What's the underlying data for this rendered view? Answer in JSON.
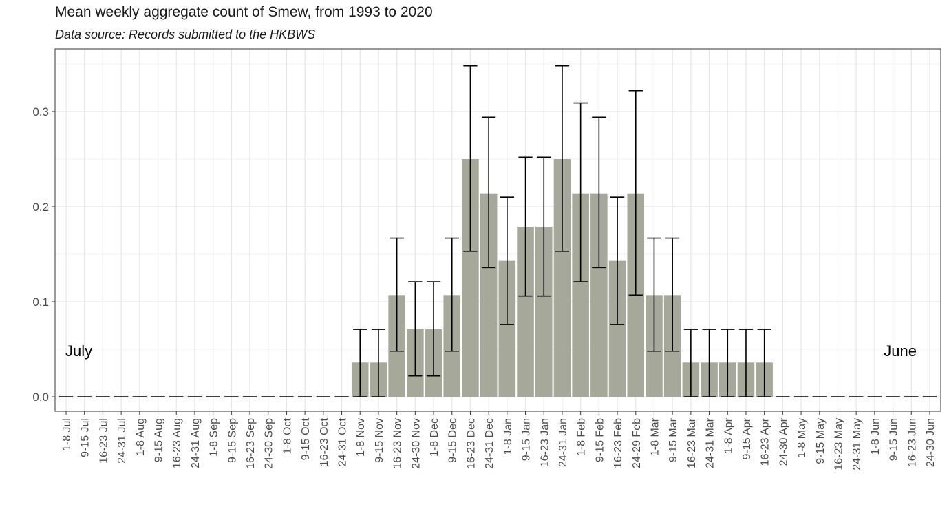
{
  "chart_data": {
    "type": "bar",
    "title": "Mean weekly aggregate count of Smew, from 1993 to 2020",
    "subtitle": "Data source: Records submitted to the HKBWS",
    "xlabel": "",
    "ylabel": "",
    "ylim": [
      0,
      0.36
    ],
    "yticks": [
      "0.0",
      "0.1",
      "0.2",
      "0.3"
    ],
    "grid": true,
    "bar_color": "#a6a89a",
    "annotations": [
      "July",
      "June"
    ],
    "categories": [
      "1-8 Jul",
      "9-15 Jul",
      "16-23 Jul",
      "24-31 Jul",
      "1-8 Aug",
      "9-15 Aug",
      "16-23 Aug",
      "24-31 Aug",
      "1-8 Sep",
      "9-15 Sep",
      "16-23 Sep",
      "24-30 Sep",
      "1-8 Oct",
      "9-15 Oct",
      "16-23 Oct",
      "24-31 Oct",
      "1-8 Nov",
      "9-15 Nov",
      "16-23 Nov",
      "24-30 Nov",
      "1-8 Dec",
      "9-15 Dec",
      "16-23 Dec",
      "24-31 Dec",
      "1-8 Jan",
      "9-15 Jan",
      "16-23 Jan",
      "24-31 Jan",
      "1-8 Feb",
      "9-15 Feb",
      "16-23 Feb",
      "24-29 Feb",
      "1-8 Mar",
      "9-15 Mar",
      "16-23 Mar",
      "24-31 Mar",
      "1-8 Apr",
      "9-15 Apr",
      "16-23 Apr",
      "24-30 Apr",
      "1-8 May",
      "9-15 May",
      "16-23 May",
      "24-31 May",
      "1-8 Jun",
      "9-15 Jun",
      "16-23 Jun",
      "24-30 Jun"
    ],
    "values": [
      0,
      0,
      0,
      0,
      0,
      0,
      0,
      0,
      0,
      0,
      0,
      0,
      0,
      0,
      0,
      0,
      0.036,
      0.036,
      0.107,
      0.071,
      0.071,
      0.107,
      0.25,
      0.214,
      0.143,
      0.179,
      0.179,
      0.25,
      0.214,
      0.214,
      0.143,
      0.214,
      0.107,
      0.107,
      0.036,
      0.036,
      0.036,
      0.036,
      0.036,
      0,
      0,
      0,
      0,
      0,
      0,
      0,
      0,
      0
    ],
    "error_low": [
      0,
      0,
      0,
      0,
      0,
      0,
      0,
      0,
      0,
      0,
      0,
      0,
      0,
      0,
      0,
      0,
      0,
      0,
      0.048,
      0.022,
      0.022,
      0.048,
      0.153,
      0.136,
      0.076,
      0.106,
      0.106,
      0.153,
      0.121,
      0.136,
      0.076,
      0.107,
      0.048,
      0.048,
      0,
      0,
      0,
      0,
      0,
      0,
      0,
      0,
      0,
      0,
      0,
      0,
      0,
      0
    ],
    "error_high": [
      0,
      0,
      0,
      0,
      0,
      0,
      0,
      0,
      0,
      0,
      0,
      0,
      0,
      0,
      0,
      0,
      0.071,
      0.071,
      0.167,
      0.121,
      0.121,
      0.167,
      0.348,
      0.294,
      0.21,
      0.252,
      0.252,
      0.348,
      0.309,
      0.294,
      0.21,
      0.322,
      0.167,
      0.167,
      0.071,
      0.071,
      0.071,
      0.071,
      0.071,
      0,
      0,
      0,
      0,
      0,
      0,
      0,
      0,
      0
    ]
  }
}
